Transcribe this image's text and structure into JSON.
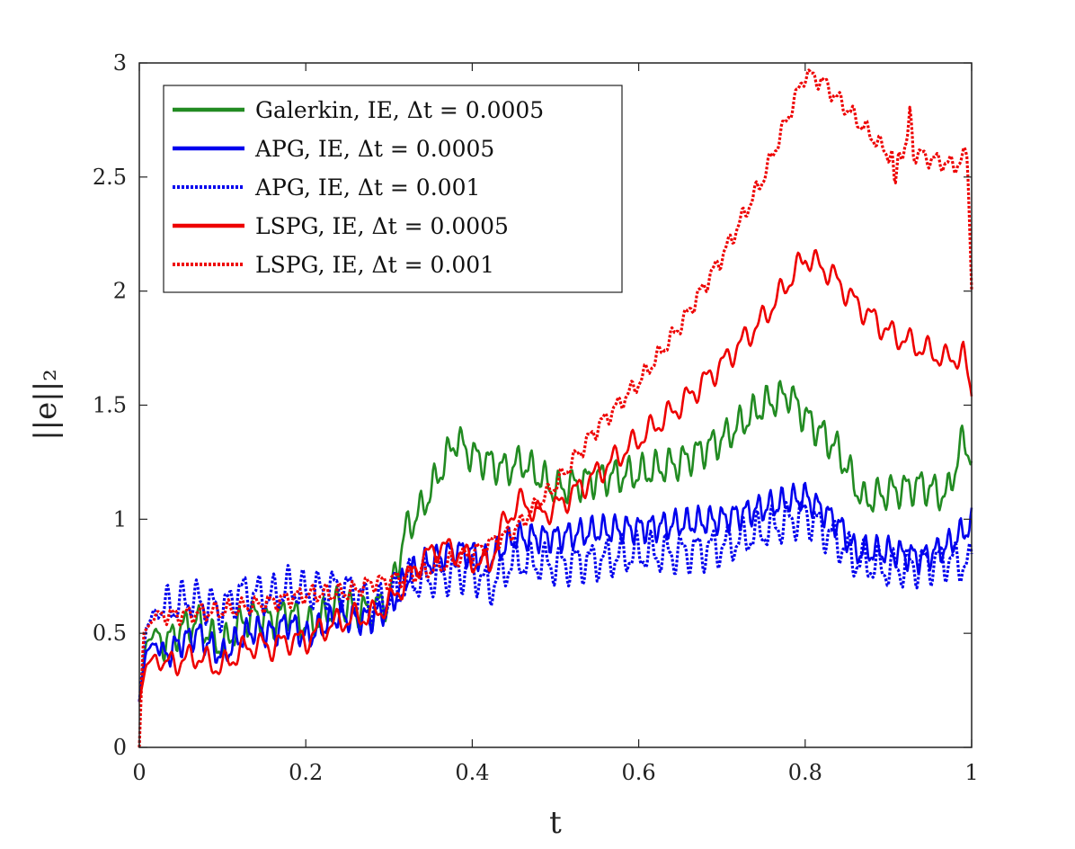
{
  "chart_data": {
    "type": "line",
    "title": "",
    "xlabel": "t",
    "ylabel": "||e||₂",
    "xlim": [
      0,
      1
    ],
    "ylim": [
      0,
      3
    ],
    "xticks": [
      0,
      0.2,
      0.4,
      0.6,
      0.8,
      1
    ],
    "xtick_labels": [
      "0",
      "0.2",
      "0.4",
      "0.6",
      "0.8",
      "1"
    ],
    "yticks": [
      0,
      0.5,
      1,
      1.5,
      2,
      2.5,
      3
    ],
    "ytick_labels": [
      "0",
      "0.5",
      "1",
      "1.5",
      "2",
      "2.5",
      "3"
    ],
    "grid": false,
    "legend_position": "top-left",
    "series": [
      {
        "name": "Galerkin, IE, Δt = 0.0005",
        "color": "#228B22",
        "style": "solid",
        "osc_amp": 0.06,
        "osc_freq": 60,
        "points": [
          [
            0,
            0.2
          ],
          [
            0.008,
            0.46
          ],
          [
            0.02,
            0.5
          ],
          [
            0.03,
            0.45
          ],
          [
            0.05,
            0.52
          ],
          [
            0.07,
            0.55
          ],
          [
            0.09,
            0.47
          ],
          [
            0.1,
            0.44
          ],
          [
            0.12,
            0.54
          ],
          [
            0.14,
            0.58
          ],
          [
            0.16,
            0.55
          ],
          [
            0.18,
            0.6
          ],
          [
            0.2,
            0.53
          ],
          [
            0.22,
            0.57
          ],
          [
            0.24,
            0.63
          ],
          [
            0.26,
            0.6
          ],
          [
            0.28,
            0.6
          ],
          [
            0.3,
            0.65
          ],
          [
            0.32,
            0.95
          ],
          [
            0.34,
            1.05
          ],
          [
            0.36,
            1.2
          ],
          [
            0.38,
            1.35
          ],
          [
            0.4,
            1.28
          ],
          [
            0.42,
            1.25
          ],
          [
            0.44,
            1.22
          ],
          [
            0.46,
            1.25
          ],
          [
            0.5,
            1.13
          ],
          [
            0.55,
            1.18
          ],
          [
            0.6,
            1.2
          ],
          [
            0.65,
            1.25
          ],
          [
            0.7,
            1.35
          ],
          [
            0.75,
            1.5
          ],
          [
            0.78,
            1.55
          ],
          [
            0.8,
            1.45
          ],
          [
            0.84,
            1.3
          ],
          [
            0.87,
            1.08
          ],
          [
            0.9,
            1.12
          ],
          [
            0.94,
            1.15
          ],
          [
            0.97,
            1.1
          ],
          [
            0.99,
            1.35
          ],
          [
            1,
            1.28
          ]
        ]
      },
      {
        "name": "APG, IE, Δt = 0.0005",
        "color": "#0000EE",
        "style": "solid",
        "osc_amp": 0.05,
        "osc_freq": 70,
        "points": [
          [
            0,
            0.2
          ],
          [
            0.008,
            0.42
          ],
          [
            0.02,
            0.46
          ],
          [
            0.03,
            0.4
          ],
          [
            0.05,
            0.46
          ],
          [
            0.07,
            0.5
          ],
          [
            0.09,
            0.43
          ],
          [
            0.1,
            0.4
          ],
          [
            0.12,
            0.48
          ],
          [
            0.14,
            0.52
          ],
          [
            0.16,
            0.5
          ],
          [
            0.18,
            0.55
          ],
          [
            0.2,
            0.48
          ],
          [
            0.22,
            0.53
          ],
          [
            0.24,
            0.58
          ],
          [
            0.26,
            0.56
          ],
          [
            0.28,
            0.57
          ],
          [
            0.3,
            0.62
          ],
          [
            0.32,
            0.74
          ],
          [
            0.34,
            0.8
          ],
          [
            0.38,
            0.86
          ],
          [
            0.4,
            0.85
          ],
          [
            0.42,
            0.82
          ],
          [
            0.45,
            0.92
          ],
          [
            0.5,
            0.92
          ],
          [
            0.55,
            0.95
          ],
          [
            0.6,
            0.96
          ],
          [
            0.65,
            0.98
          ],
          [
            0.7,
            1.0
          ],
          [
            0.75,
            1.05
          ],
          [
            0.8,
            1.1
          ],
          [
            0.84,
            0.98
          ],
          [
            0.86,
            0.86
          ],
          [
            0.9,
            0.86
          ],
          [
            0.94,
            0.83
          ],
          [
            0.97,
            0.88
          ],
          [
            1,
            0.98
          ]
        ]
      },
      {
        "name": "APG, IE, Δt = 0.001",
        "color": "#0000EE",
        "style": "dotted",
        "osc_amp": 0.07,
        "osc_freq": 55,
        "points": [
          [
            0,
            0.2
          ],
          [
            0.008,
            0.52
          ],
          [
            0.02,
            0.6
          ],
          [
            0.04,
            0.62
          ],
          [
            0.06,
            0.65
          ],
          [
            0.08,
            0.63
          ],
          [
            0.1,
            0.6
          ],
          [
            0.12,
            0.68
          ],
          [
            0.14,
            0.67
          ],
          [
            0.16,
            0.66
          ],
          [
            0.18,
            0.7
          ],
          [
            0.2,
            0.68
          ],
          [
            0.22,
            0.69
          ],
          [
            0.24,
            0.7
          ],
          [
            0.26,
            0.68
          ],
          [
            0.28,
            0.62
          ],
          [
            0.3,
            0.65
          ],
          [
            0.32,
            0.72
          ],
          [
            0.36,
            0.75
          ],
          [
            0.4,
            0.78
          ],
          [
            0.42,
            0.7
          ],
          [
            0.45,
            0.82
          ],
          [
            0.5,
            0.8
          ],
          [
            0.55,
            0.82
          ],
          [
            0.6,
            0.85
          ],
          [
            0.65,
            0.85
          ],
          [
            0.7,
            0.88
          ],
          [
            0.75,
            0.95
          ],
          [
            0.8,
            1.02
          ],
          [
            0.84,
            0.9
          ],
          [
            0.86,
            0.82
          ],
          [
            0.9,
            0.78
          ],
          [
            0.94,
            0.8
          ],
          [
            0.97,
            0.82
          ],
          [
            1,
            0.8
          ]
        ]
      },
      {
        "name": "LSPG, IE, Δt = 0.0005",
        "color": "#EE0000",
        "style": "solid",
        "osc_amp": 0.045,
        "osc_freq": 45,
        "points": [
          [
            0,
            0.2
          ],
          [
            0.008,
            0.36
          ],
          [
            0.02,
            0.4
          ],
          [
            0.03,
            0.36
          ],
          [
            0.05,
            0.38
          ],
          [
            0.07,
            0.4
          ],
          [
            0.09,
            0.36
          ],
          [
            0.1,
            0.35
          ],
          [
            0.12,
            0.42
          ],
          [
            0.14,
            0.45
          ],
          [
            0.16,
            0.44
          ],
          [
            0.18,
            0.47
          ],
          [
            0.2,
            0.47
          ],
          [
            0.22,
            0.52
          ],
          [
            0.24,
            0.55
          ],
          [
            0.26,
            0.57
          ],
          [
            0.28,
            0.58
          ],
          [
            0.3,
            0.63
          ],
          [
            0.32,
            0.73
          ],
          [
            0.34,
            0.82
          ],
          [
            0.36,
            0.88
          ],
          [
            0.38,
            0.86
          ],
          [
            0.4,
            0.82
          ],
          [
            0.42,
            0.8
          ],
          [
            0.44,
            1.0
          ],
          [
            0.46,
            1.08
          ],
          [
            0.48,
            1.02
          ],
          [
            0.5,
            1.05
          ],
          [
            0.55,
            1.2
          ],
          [
            0.6,
            1.35
          ],
          [
            0.65,
            1.5
          ],
          [
            0.7,
            1.68
          ],
          [
            0.75,
            1.88
          ],
          [
            0.8,
            2.15
          ],
          [
            0.83,
            2.08
          ],
          [
            0.86,
            1.95
          ],
          [
            0.9,
            1.82
          ],
          [
            0.94,
            1.75
          ],
          [
            0.97,
            1.7
          ],
          [
            0.99,
            1.72
          ],
          [
            1,
            1.55
          ]
        ]
      },
      {
        "name": "LSPG, IE, Δt = 0.001",
        "color": "#EE0000",
        "style": "dotted",
        "osc_amp": 0.03,
        "osc_freq": 60,
        "points": [
          [
            0,
            0
          ],
          [
            0.005,
            0.5
          ],
          [
            0.02,
            0.58
          ],
          [
            0.05,
            0.58
          ],
          [
            0.1,
            0.6
          ],
          [
            0.15,
            0.63
          ],
          [
            0.2,
            0.67
          ],
          [
            0.25,
            0.68
          ],
          [
            0.28,
            0.72
          ],
          [
            0.3,
            0.73
          ],
          [
            0.32,
            0.75
          ],
          [
            0.35,
            0.78
          ],
          [
            0.4,
            0.85
          ],
          [
            0.45,
            0.95
          ],
          [
            0.5,
            1.15
          ],
          [
            0.55,
            1.4
          ],
          [
            0.6,
            1.6
          ],
          [
            0.65,
            1.85
          ],
          [
            0.7,
            2.15
          ],
          [
            0.75,
            2.5
          ],
          [
            0.8,
            2.95
          ],
          [
            0.82,
            2.92
          ],
          [
            0.85,
            2.8
          ],
          [
            0.88,
            2.68
          ],
          [
            0.9,
            2.6
          ],
          [
            0.92,
            2.62
          ],
          [
            0.95,
            2.58
          ],
          [
            0.98,
            2.55
          ],
          [
            0.995,
            2.6
          ],
          [
            1,
            2.02
          ]
        ],
        "spikes": [
          [
            0.908,
            2.45
          ],
          [
            0.926,
            2.82
          ]
        ]
      }
    ]
  }
}
